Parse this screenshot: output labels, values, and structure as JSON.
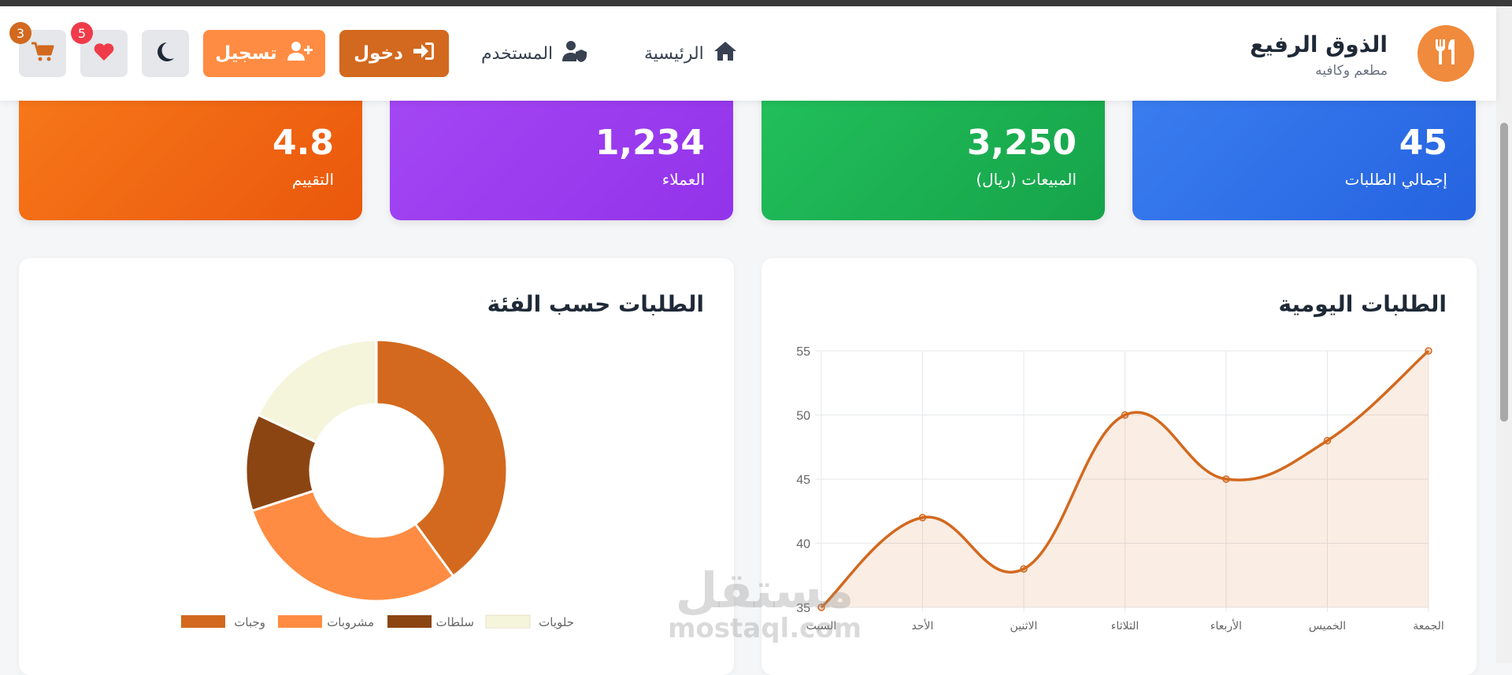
{
  "brand": {
    "name": "الذوق الرفيع",
    "subtitle": "مطعم وكافيه",
    "logo_icon": "utensils-icon"
  },
  "nav": {
    "home": {
      "label": "الرئيسية",
      "icon": "home-icon"
    },
    "user": {
      "label": "المستخدم",
      "icon": "user-shield-icon"
    },
    "login": {
      "label": "دخول",
      "icon": "sign-in-icon"
    },
    "register": {
      "label": "تسجيل",
      "icon": "user-plus-icon"
    }
  },
  "actions": {
    "theme_icon": "moon-icon",
    "favorites": {
      "icon": "heart-icon",
      "count": "5"
    },
    "cart": {
      "icon": "cart-icon",
      "count": "3"
    }
  },
  "colors": {
    "accent": "#d2691e",
    "accent_light": "#ff8c42",
    "card_blue": "#2f6fe8",
    "card_green": "#1fb455",
    "card_purple": "#9a3cf0",
    "card_orange": "#f06a12"
  },
  "stats": [
    {
      "value": "45",
      "label": "إجمالي الطلبات"
    },
    {
      "value": "3,250",
      "label": "المبيعات (ريال)"
    },
    {
      "value": "1,234",
      "label": "العملاء"
    },
    {
      "value": "4.8",
      "label": "التقييم"
    }
  ],
  "panels": {
    "daily": {
      "title": "الطلبات اليومية"
    },
    "category": {
      "title": "الطلبات حسب الفئة"
    }
  },
  "watermark": {
    "ar": "مستقل",
    "en": "mostaql.com"
  },
  "chart_data": [
    {
      "type": "line",
      "title": "الطلبات اليومية",
      "categories": [
        "السبت",
        "الأحد",
        "الاثنين",
        "الثلاثاء",
        "الأربعاء",
        "الخميس",
        "الجمعة"
      ],
      "values": [
        35,
        42,
        38,
        50,
        45,
        48,
        55
      ],
      "ylim": [
        35,
        55
      ],
      "yticks": [
        "35",
        "40",
        "45",
        "50",
        "55"
      ],
      "grid": true,
      "fill": true,
      "color": "#d2691e"
    },
    {
      "type": "pie",
      "title": "الطلبات حسب الفئة",
      "labels": [
        "وجبات",
        "مشروبات",
        "سلطات",
        "حلويات"
      ],
      "values": [
        40,
        30,
        12,
        18
      ],
      "colors": [
        "#d2691e",
        "#ff8c42",
        "#8b4513",
        "#f5f5dc"
      ],
      "legend": "bottom"
    }
  ]
}
